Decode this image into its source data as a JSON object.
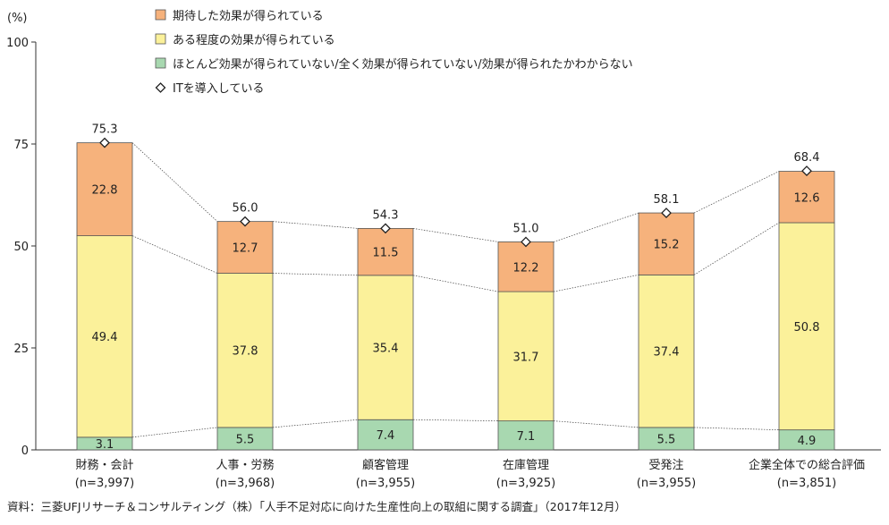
{
  "chart_data": {
    "type": "bar",
    "stacked": true,
    "y_unit_label": "(%)",
    "ylim": [
      0,
      100
    ],
    "yticks": [
      0,
      25,
      50,
      75,
      100
    ],
    "categories": [
      {
        "name": "財務・会計",
        "n": "(n=3,997)"
      },
      {
        "name": "人事・労務",
        "n": "(n=3,968)"
      },
      {
        "name": "顧客管理",
        "n": "(n=3,955)"
      },
      {
        "name": "在庫管理",
        "n": "(n=3,925)"
      },
      {
        "name": "受発注",
        "n": "(n=3,955)"
      },
      {
        "name": "企業全体での総合評価",
        "n": "(n=3,851)"
      }
    ],
    "series": [
      {
        "name": "ほとんど効果が得られていない/全く効果が得られていない/効果が得られたかわからない",
        "color": "#a8d8b0",
        "values": [
          3.1,
          5.5,
          7.4,
          7.1,
          5.5,
          4.9
        ]
      },
      {
        "name": "ある程度の効果が得られている",
        "color": "#fbf19a",
        "values": [
          49.4,
          37.8,
          35.4,
          31.7,
          37.4,
          50.8
        ]
      },
      {
        "name": "期待した効果が得られている",
        "color": "#f6b27c",
        "values": [
          22.8,
          12.7,
          11.5,
          12.2,
          15.2,
          12.6
        ]
      }
    ],
    "line": {
      "name": "ITを導入している",
      "values": [
        75.3,
        56.0,
        54.3,
        51.0,
        58.1,
        68.4
      ],
      "labels": [
        "75.3",
        "56.0",
        "54.3",
        "51.0",
        "58.1",
        "68.4"
      ]
    },
    "legend": {
      "placement": "top",
      "items": [
        {
          "label": "期待した効果が得られている",
          "marker": "square",
          "color": "#f6b27c"
        },
        {
          "label": "ある程度の効果が得られている",
          "marker": "square",
          "color": "#fbf19a"
        },
        {
          "label": "ほとんど効果が得られていない/全く効果が得られていない/効果が得られたかわからない",
          "marker": "square",
          "color": "#a8d8b0"
        },
        {
          "label": "ITを導入している",
          "marker": "diamond",
          "color": "#ffffff"
        }
      ]
    },
    "source": "資料：三菱UFJリサーチ＆コンサルティング（株）「人手不足対応に向けた生産性向上の取組に関する調査」（2017年12月）"
  }
}
